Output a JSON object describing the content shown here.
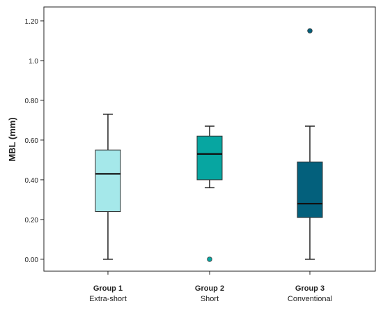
{
  "chart_data": {
    "type": "box",
    "title": "",
    "xlabel": "",
    "ylabel": "MBL (mm)",
    "ylim": [
      -0.06,
      1.27
    ],
    "y_ticks": [
      "0.00",
      "0.20",
      "0.40",
      "0.60",
      "0.80",
      "1.0",
      "1.20"
    ],
    "y_tick_values": [
      0.0,
      0.2,
      0.4,
      0.6,
      0.8,
      1.0,
      1.2
    ],
    "grid": false,
    "legend": "none",
    "categories": [
      {
        "label": "Group 1",
        "sublabel": "Extra-short"
      },
      {
        "label": "Group 2",
        "sublabel": "Short"
      },
      {
        "label": "Group 3",
        "sublabel": "Conventional"
      }
    ],
    "series": [
      {
        "min": 0.0,
        "q1": 0.24,
        "median": 0.43,
        "q3": 0.55,
        "max": 0.73,
        "outliers": [],
        "color": "#a5e8ea"
      },
      {
        "min": 0.36,
        "q1": 0.4,
        "median": 0.53,
        "q3": 0.62,
        "max": 0.67,
        "outliers": [
          0.0
        ],
        "color": "#07a6a1"
      },
      {
        "min": 0.0,
        "q1": 0.21,
        "median": 0.28,
        "q3": 0.49,
        "max": 0.67,
        "outliers": [
          1.15
        ],
        "color": "#03607c"
      }
    ]
  }
}
